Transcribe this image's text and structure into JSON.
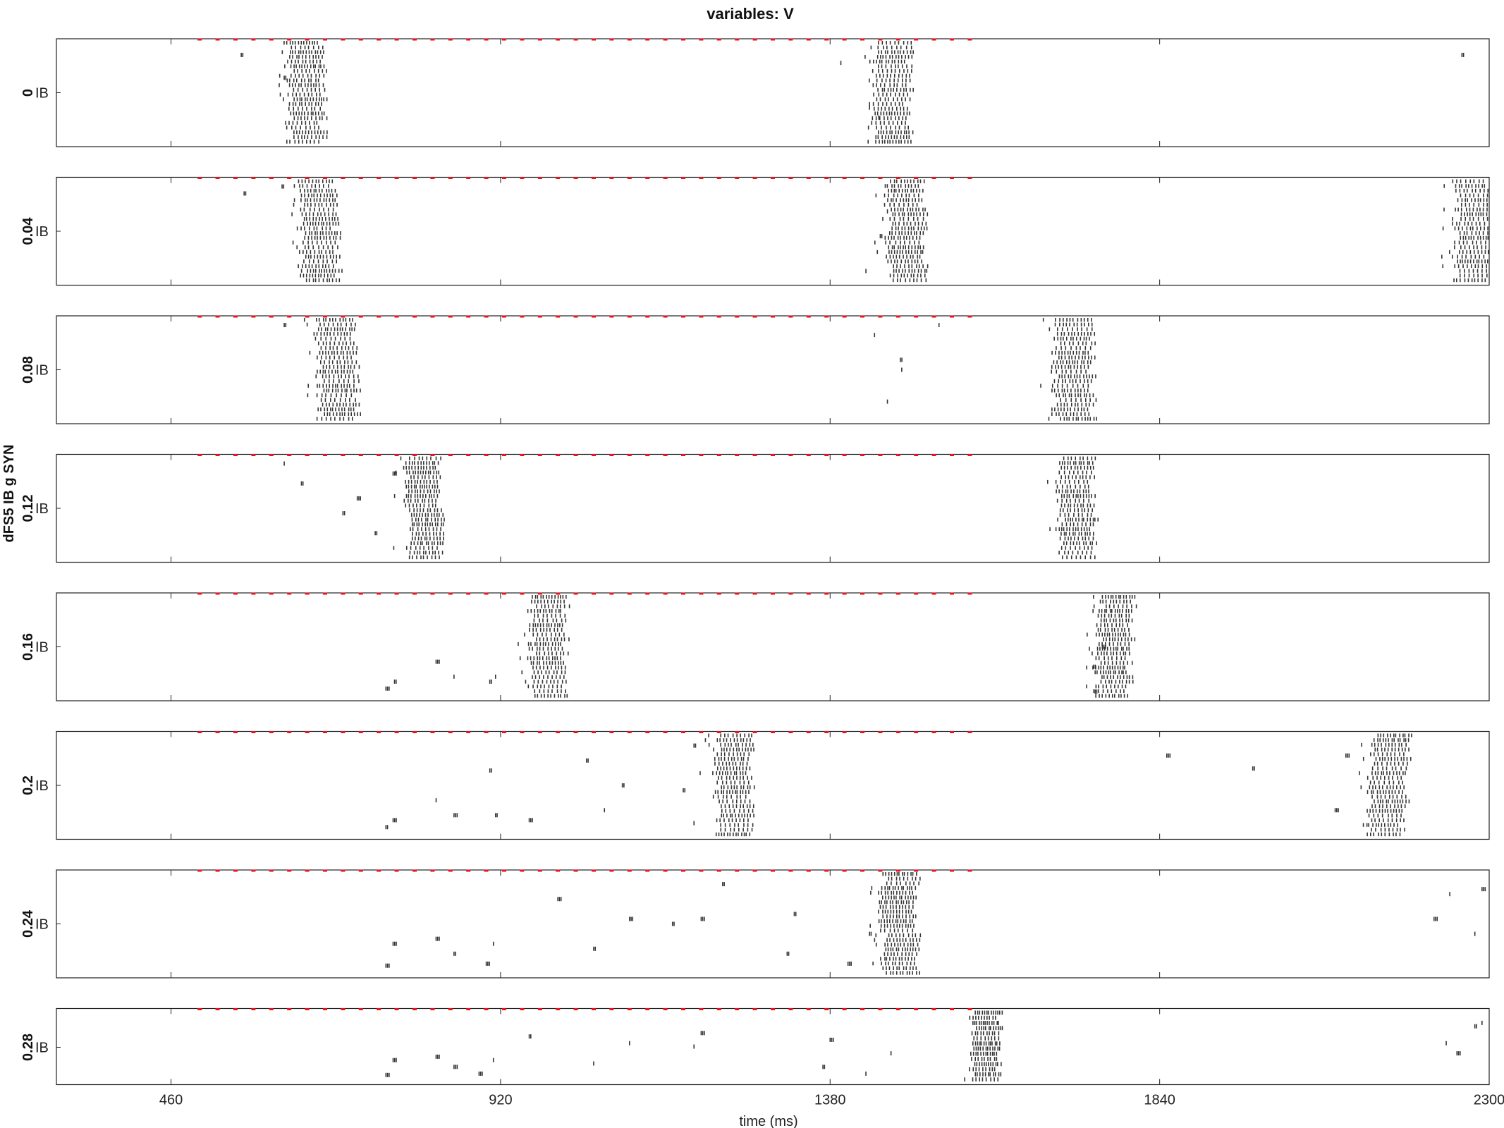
{
  "chart_data": {
    "type": "scatter",
    "title": "variables: V",
    "xlabel": "time (ms)",
    "ylabel": "dFS5 IB g SYN",
    "xlim": [
      300,
      2300
    ],
    "x_ticks": [
      "460",
      "920",
      "1380",
      "1840",
      "2300"
    ],
    "population_label": "IB",
    "grid": false,
    "marker_color": "#333333",
    "stimulus_color": "#e8141e",
    "stimulus_times": [
      500,
      525,
      550,
      575,
      600,
      625,
      650,
      675,
      700,
      725,
      750,
      775,
      800,
      825,
      850,
      875,
      900,
      925,
      950,
      975,
      1000,
      1025,
      1050,
      1075,
      1100,
      1125,
      1150,
      1175,
      1200,
      1225,
      1250,
      1275,
      1300,
      1325,
      1350,
      1375,
      1400,
      1425,
      1450,
      1475,
      1500,
      1525,
      1550,
      1575
    ],
    "panels": [
      {
        "label": "0",
        "bursts": [
          {
            "center": 650,
            "width": 50,
            "drift": 0
          },
          {
            "center": 1468,
            "width": 52,
            "drift": 0
          }
        ],
        "outliers": [
          [
            558,
            0.12
          ],
          [
            618,
            0.35
          ],
          [
            1435,
            0.65
          ],
          [
            1448,
            0.75
          ],
          [
            1395,
            0.2
          ],
          [
            2262,
            0.12
          ]
        ]
      },
      {
        "label": "0.04",
        "bursts": [
          {
            "center": 665,
            "width": 52,
            "drift": 8
          },
          {
            "center": 1488,
            "width": 52,
            "drift": 0
          },
          {
            "center": 2280,
            "width": 50,
            "drift": 0
          }
        ],
        "outliers": [
          [
            562,
            0.12
          ],
          [
            615,
            0.05
          ],
          [
            1430,
            0.9
          ],
          [
            1460,
            0.3
          ],
          [
            1450,
            0.55
          ]
        ]
      },
      {
        "label": "0.08",
        "bursts": [
          {
            "center": 690,
            "width": 55,
            "drift": 10
          },
          {
            "center": 1723,
            "width": 55,
            "drift": 0
          }
        ],
        "outliers": [
          [
            618,
            0.05
          ],
          [
            1442,
            0.15
          ],
          [
            1460,
            0.82
          ],
          [
            1480,
            0.5
          ],
          [
            1532,
            0.05
          ],
          [
            1478,
            0.4
          ]
        ]
      },
      {
        "label": "0.12",
        "bursts": [
          {
            "center": 815,
            "width": 48,
            "drift": 0
          },
          {
            "center": 1727,
            "width": 50,
            "drift": 0
          }
        ],
        "outliers": [
          [
            618,
            0.05
          ],
          [
            745,
            0.75
          ],
          [
            700,
            0.55
          ],
          [
            720,
            0.4
          ],
          [
            642,
            0.25
          ],
          [
            770,
            0.15
          ]
        ]
      },
      {
        "label": "0.16",
        "bursts": [
          {
            "center": 990,
            "width": 50,
            "drift": 0
          },
          {
            "center": 1785,
            "width": 48,
            "drift": -10
          }
        ],
        "outliers": [
          [
            760,
            0.92
          ],
          [
            772,
            0.85
          ],
          [
            830,
            0.65
          ],
          [
            855,
            0.8
          ],
          [
            913,
            0.8
          ],
          [
            905,
            0.85
          ],
          [
            1750,
            0.95
          ],
          [
            1760,
            0.5
          ],
          [
            1748,
            0.7
          ]
        ]
      },
      {
        "label": "0.2",
        "bursts": [
          {
            "center": 1248,
            "width": 50,
            "drift": 0
          },
          {
            "center": 2170,
            "width": 52,
            "drift": -15
          }
        ],
        "outliers": [
          [
            760,
            0.92
          ],
          [
            770,
            0.85
          ],
          [
            830,
            0.65
          ],
          [
            855,
            0.8
          ],
          [
            913,
            0.8
          ],
          [
            905,
            0.35
          ],
          [
            960,
            0.85
          ],
          [
            1040,
            0.25
          ],
          [
            1090,
            0.5
          ],
          [
            1065,
            0.75
          ],
          [
            1175,
            0.55
          ],
          [
            1190,
            0.88
          ],
          [
            1190,
            0.1
          ],
          [
            1850,
            0.2
          ],
          [
            1970,
            0.33
          ],
          [
            2085,
            0.75
          ],
          [
            2100,
            0.2
          ]
        ]
      },
      {
        "label": "0.24",
        "bursts": [
          {
            "center": 1480,
            "width": 50,
            "drift": 0
          }
        ],
        "outliers": [
          [
            760,
            0.92
          ],
          [
            770,
            0.7
          ],
          [
            830,
            0.65
          ],
          [
            855,
            0.8
          ],
          [
            910,
            0.7
          ],
          [
            900,
            0.9
          ],
          [
            1000,
            0.25
          ],
          [
            1050,
            0.75
          ],
          [
            1100,
            0.45
          ],
          [
            1160,
            0.5
          ],
          [
            1200,
            0.45
          ],
          [
            1230,
            0.1
          ],
          [
            1320,
            0.8
          ],
          [
            1330,
            0.4
          ],
          [
            1405,
            0.9
          ],
          [
            1435,
            0.6
          ],
          [
            2223,
            0.45
          ],
          [
            2245,
            0.2
          ],
          [
            2280,
            0.6
          ],
          [
            2290,
            0.15
          ]
        ]
      },
      {
        "label": "0.28",
        "bursts": [
          {
            "center": 1600,
            "width": 40,
            "drift": 0
          }
        ],
        "outliers": [
          [
            760,
            0.92
          ],
          [
            770,
            0.7
          ],
          [
            830,
            0.65
          ],
          [
            855,
            0.8
          ],
          [
            910,
            0.7
          ],
          [
            890,
            0.9
          ],
          [
            960,
            0.35
          ],
          [
            1050,
            0.75
          ],
          [
            1100,
            0.45
          ],
          [
            1190,
            0.5
          ],
          [
            1200,
            0.3
          ],
          [
            1370,
            0.8
          ],
          [
            1380,
            0.4
          ],
          [
            1430,
            0.9
          ],
          [
            1465,
            0.6
          ],
          [
            2240,
            0.45
          ],
          [
            2280,
            0.2
          ],
          [
            2255,
            0.6
          ],
          [
            2290,
            0.15
          ]
        ]
      }
    ]
  }
}
